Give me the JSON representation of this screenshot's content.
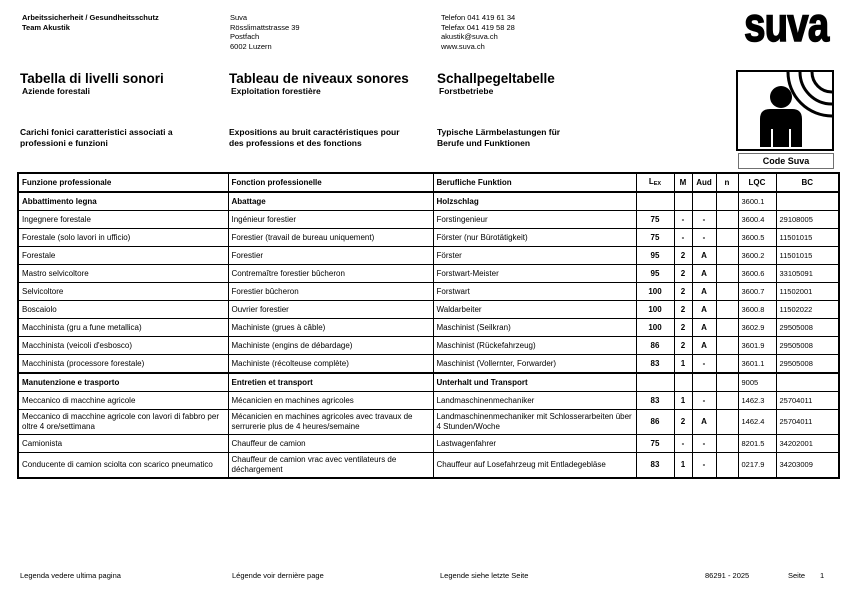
{
  "header": {
    "sender": [
      "Arbeitssicherheit / Gesundheitsschutz",
      "Team Akustik"
    ],
    "address": [
      "Suva",
      "Rösslimattstrasse 39",
      "Postfach",
      "6002 Luzern"
    ],
    "contact": [
      "Telefon 041 419 61 34",
      "Telefax 041 419 58 28",
      "akustik@suva.ch",
      "www.suva.ch"
    ],
    "logo_text": "suva"
  },
  "intro": {
    "it": {
      "title": "Tabella di livelli sonori",
      "subtitle": "Aziende forestali",
      "description": "Carichi fonici caratteristici associati a\nprofessioni e funzioni"
    },
    "fr": {
      "title": "Tableau de niveaux sonores",
      "subtitle": "Exploitation forestière",
      "description": "Expositions au bruit caractéristiques pour\ndes professions et des fonctions"
    },
    "de": {
      "title": "Schallpegeltabelle",
      "subtitle": "Forstbetriebe",
      "description": "Typische Lärmbelastungen für\nBerufe und Funktionen"
    },
    "code_box_label": "Code Suva",
    "noise_icon": "person-noise-exposure-icon"
  },
  "table": {
    "headers": [
      {
        "text": "Funzione professionale"
      },
      {
        "text": "Fonction professionelle"
      },
      {
        "text": "Berufliche Funktion"
      },
      {
        "text": "L",
        "sub": "EX"
      },
      {
        "text": "M"
      },
      {
        "text": "Aud"
      },
      {
        "text": "n"
      },
      {
        "text": "LQC"
      },
      {
        "text": "BC"
      }
    ],
    "rows": [
      {
        "type": "group",
        "cells": [
          "Abbattimento legna",
          "Abattage",
          "Holzschlag",
          "",
          "",
          "",
          "",
          "3600.1",
          ""
        ]
      },
      {
        "type": "data",
        "cells": [
          "Ingegnere forestale",
          "Ingénieur forestier",
          "Forstingenieur",
          "75",
          "-",
          "-",
          "",
          "3600.4",
          "29108005"
        ]
      },
      {
        "type": "data",
        "cells": [
          "Forestale (solo lavori in ufficio)",
          "Forestier (travail de bureau uniquement)",
          "Förster (nur Bürotätigkeit)",
          "75",
          "-",
          "-",
          "",
          "3600.5",
          "11501015"
        ]
      },
      {
        "type": "data",
        "cells": [
          "Forestale",
          "Forestier",
          "Förster",
          "95",
          "2",
          "A",
          "",
          "3600.2",
          "11501015"
        ]
      },
      {
        "type": "data",
        "cells": [
          "Mastro selvicoltore",
          "Contremaître forestier bûcheron",
          "Forstwart-Meister",
          "95",
          "2",
          "A",
          "",
          "3600.6",
          "33105091"
        ]
      },
      {
        "type": "data",
        "cells": [
          "Selvicoltore",
          "Forestier bûcheron",
          "Forstwart",
          "100",
          "2",
          "A",
          "",
          "3600.7",
          "11502001"
        ]
      },
      {
        "type": "data",
        "cells": [
          "Boscaiolo",
          "Ouvrier forestier",
          "Waldarbeiter",
          "100",
          "2",
          "A",
          "",
          "3600.8",
          "11502022"
        ]
      },
      {
        "type": "data",
        "cells": [
          "Macchinista (gru a fune metallica)",
          "Machiniste (grues à câble)",
          "Maschinist (Seilkran)",
          "100",
          "2",
          "A",
          "",
          "3602.9",
          "29505008"
        ]
      },
      {
        "type": "data",
        "cells": [
          "Macchinista (veicoli d'esbosco)",
          "Machiniste (engins de débardage)",
          "Maschinist (Rückefahrzeug)",
          "86",
          "2",
          "A",
          "",
          "3601.9",
          "29505008"
        ]
      },
      {
        "type": "data",
        "cells": [
          "Macchinista (processore forestale)",
          "Machiniste (récolteuse complète)",
          "Maschinist (Vollernter, Forwarder)",
          "83",
          "1",
          "-",
          "",
          "3601.1",
          "29505008"
        ]
      },
      {
        "type": "group",
        "cells": [
          "Manutenzione e trasporto",
          "Entretien et transport",
          "Unterhalt und Transport",
          "",
          "",
          "",
          "",
          "9005",
          ""
        ]
      },
      {
        "type": "data",
        "cells": [
          "Meccanico di macchine agricole",
          "Mécanicien en machines agricoles",
          "Landmaschinenmechaniker",
          "83",
          "1",
          "-",
          "",
          "1462.3",
          "25704011"
        ]
      },
      {
        "type": "data",
        "cells": [
          "Meccanico di macchine agricole con lavori di fabbro per oltre 4 ore/settimana",
          "Mécanicien en machines agricoles avec travaux de serrurerie plus de 4 heures/semaine",
          "Landmaschinenmechaniker mit Schlosserarbeiten über 4 Stunden/Woche",
          "86",
          "2",
          "A",
          "",
          "1462.4",
          "25704011"
        ]
      },
      {
        "type": "data",
        "cells": [
          "Camionista",
          "Chauffeur de camion",
          "Lastwagenfahrer",
          "75",
          "-",
          "-",
          "",
          "8201.5",
          "34202001"
        ]
      },
      {
        "type": "data",
        "cells": [
          "Conducente di camion sciolta con scarico pneumatico",
          "Chauffeur de camion vrac avec ventilateurs de déchargement",
          "Chauffeur auf Losefahrzeug mit Entladegebläse",
          "83",
          "1",
          "-",
          "",
          "0217.9",
          "34203009"
        ]
      }
    ]
  },
  "footer": {
    "it": "Legenda vedere ultima pagina",
    "fr": "Légende voir dernière page",
    "de": "Legende siehe letzte Seite",
    "doc_number": "86291 - 2025",
    "page_label": "Seite",
    "page_number": "1"
  },
  "colors": {
    "ink": "#000000",
    "code_box_border": "#707070"
  }
}
